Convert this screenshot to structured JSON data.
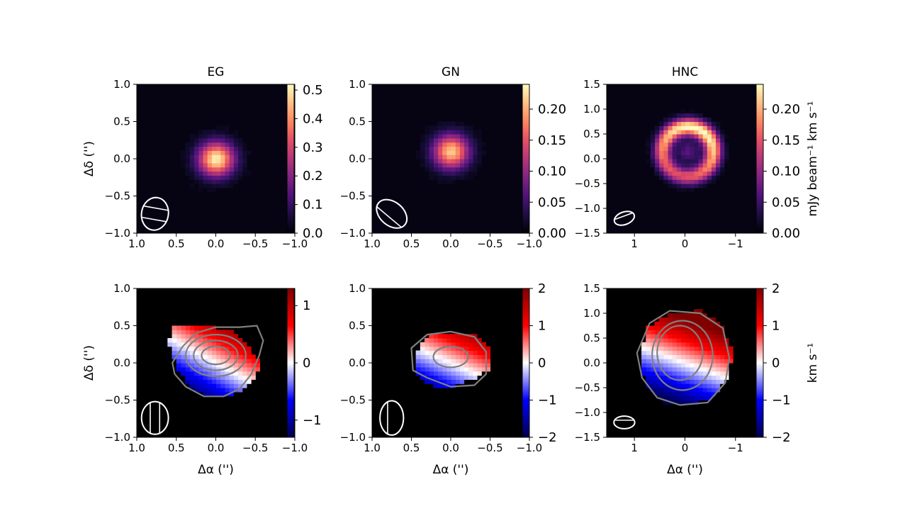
{
  "chart_data": [
    {
      "type": "heatmap",
      "panel": "EG-moment0",
      "title": "EG",
      "xlabel": "",
      "ylabel": "Δδ ('')",
      "xlim": [
        1.0,
        -1.0
      ],
      "ylim": [
        -1.0,
        1.0
      ],
      "xticks": [
        "1.0",
        "0.5",
        "0.0",
        "−0.5",
        "−1.0"
      ],
      "yticks": [
        "1.0",
        "0.5",
        "0.0",
        "−0.5",
        "−1.0"
      ],
      "colormap": "magma",
      "colorbar": {
        "range": [
          0,
          0.52
        ],
        "ticks": [
          "0.5",
          "0.4",
          "0.3",
          "0.2",
          "0.1",
          "0.0"
        ],
        "label": ""
      },
      "emission": {
        "shape": "peak",
        "ra_center": 0.0,
        "dec_center": 0.0,
        "peak": 0.5
      },
      "beam": {
        "ra": 0.77,
        "dec": -0.74,
        "major": 0.44,
        "minor": 0.34,
        "pa": 10
      }
    },
    {
      "type": "heatmap",
      "panel": "GN-moment0",
      "title": "GN",
      "xlabel": "",
      "ylabel": "",
      "xlim": [
        1.0,
        -1.0
      ],
      "ylim": [
        -1.0,
        1.0
      ],
      "xticks": [
        "1.0",
        "0.5",
        "0.0",
        "−0.5",
        "−1.0"
      ],
      "yticks": [
        "1.0",
        "0.5",
        "0.0",
        "−0.5",
        "−1.0"
      ],
      "colormap": "magma",
      "colorbar": {
        "range": [
          0,
          0.24
        ],
        "ticks": [
          "0.20",
          "0.15",
          "0.10",
          "0.05",
          "0.00"
        ],
        "label": ""
      },
      "emission": {
        "shape": "peak",
        "ra_center": 0.0,
        "dec_center": 0.1,
        "peak": 0.21
      },
      "beam": {
        "ra": 0.75,
        "dec": -0.74,
        "major": 0.46,
        "minor": 0.3,
        "pa": -50
      }
    },
    {
      "type": "heatmap",
      "panel": "HNC-moment0",
      "title": "HNC",
      "xlabel": "",
      "ylabel": "",
      "xlim": [
        1.55,
        -1.55
      ],
      "ylim": [
        -1.5,
        1.5
      ],
      "xticks": [
        "1",
        "0",
        "−1"
      ],
      "yticks": [
        "1.5",
        "1.0",
        "0.5",
        "0.0",
        "−0.5",
        "−1.0",
        "−1.5"
      ],
      "colormap": "magma",
      "colorbar": {
        "range": [
          0,
          0.24
        ],
        "ticks": [
          "0.20",
          "0.15",
          "0.10",
          "0.05",
          "0.00"
        ],
        "label": "mJy beam⁻¹ km s⁻¹"
      },
      "emission": {
        "shape": "ring",
        "ra_center": 0.05,
        "dec_center": 0.15,
        "radius": 0.5,
        "peak": 0.24
      },
      "beam": {
        "ra": 1.2,
        "dec": -1.2,
        "major": 0.42,
        "minor": 0.25,
        "pa": 70
      }
    },
    {
      "type": "heatmap",
      "panel": "EG-moment1",
      "xlabel": "Δα ('')",
      "ylabel": "Δδ ('')",
      "xlim": [
        1.0,
        -1.0
      ],
      "ylim": [
        -1.0,
        1.0
      ],
      "xticks": [
        "1.0",
        "0.5",
        "0.0",
        "−0.5",
        "−1.0"
      ],
      "yticks": [
        "1.0",
        "0.5",
        "0.0",
        "−0.5",
        "−1.0"
      ],
      "colormap": "seismic",
      "colorbar": {
        "range": [
          -1.3,
          1.3
        ],
        "ticks": [
          "1",
          "0",
          "−1"
        ],
        "label": ""
      },
      "velocity_field": {
        "gradient_angle_deg": 30,
        "max": 1.3
      },
      "emission_extent": [
        [
          0.55,
          0.0
        ],
        [
          0.42,
          0.22
        ],
        [
          0.25,
          0.4
        ],
        [
          0.0,
          0.48
        ],
        [
          -0.3,
          0.48
        ],
        [
          -0.52,
          0.5
        ],
        [
          -0.6,
          0.3
        ],
        [
          -0.55,
          0.1
        ],
        [
          -0.45,
          -0.15
        ],
        [
          -0.3,
          -0.35
        ],
        [
          -0.1,
          -0.45
        ],
        [
          0.15,
          -0.45
        ],
        [
          0.38,
          -0.32
        ],
        [
          0.52,
          -0.15
        ]
      ],
      "contours": [
        {
          "ra": 0.0,
          "dec": 0.1,
          "ra_radius": 0.18,
          "dec_radius": 0.12
        },
        {
          "ra": 0.0,
          "dec": 0.1,
          "ra_radius": 0.28,
          "dec_radius": 0.2
        },
        {
          "ra": 0.0,
          "dec": 0.1,
          "ra_radius": 0.38,
          "dec_radius": 0.28
        }
      ],
      "beam": {
        "ra": 0.77,
        "dec": -0.74,
        "major": 0.44,
        "minor": 0.34,
        "pa": 0
      }
    },
    {
      "type": "heatmap",
      "panel": "GN-moment1",
      "xlabel": "Δα ('')",
      "ylabel": "",
      "xlim": [
        1.0,
        -1.0
      ],
      "ylim": [
        -1.0,
        1.0
      ],
      "xticks": [
        "1.0",
        "0.5",
        "0.0",
        "−0.5",
        "−1.0"
      ],
      "yticks": [
        "1.0",
        "0.5",
        "0.0",
        "−0.5",
        "−1.0"
      ],
      "colormap": "seismic",
      "colorbar": {
        "range": [
          -2,
          2
        ],
        "ticks": [
          "2",
          "1",
          "0",
          "−1",
          "−2"
        ],
        "label": ""
      },
      "velocity_field": {
        "gradient_angle_deg": 25,
        "max": 2.0
      },
      "emission_extent": [
        [
          0.5,
          0.2
        ],
        [
          0.3,
          0.38
        ],
        [
          0.0,
          0.42
        ],
        [
          -0.3,
          0.35
        ],
        [
          -0.45,
          0.15
        ],
        [
          -0.45,
          -0.15
        ],
        [
          -0.3,
          -0.3
        ],
        [
          0.0,
          -0.32
        ],
        [
          0.3,
          -0.2
        ],
        [
          0.48,
          -0.1
        ]
      ],
      "contours": [
        {
          "ra": 0.0,
          "dec": 0.08,
          "ra_radius": 0.22,
          "dec_radius": 0.14
        }
      ],
      "beam": {
        "ra": 0.75,
        "dec": -0.74,
        "major": 0.46,
        "minor": 0.3,
        "pa": 0
      }
    },
    {
      "type": "heatmap",
      "panel": "HNC-moment1",
      "xlabel": "Δα ('')",
      "ylabel": "",
      "xlim": [
        1.55,
        -1.55
      ],
      "ylim": [
        -1.5,
        1.5
      ],
      "xticks": [
        "1",
        "0",
        "−1"
      ],
      "yticks": [
        "1.5",
        "1.0",
        "0.5",
        "0.0",
        "−0.5",
        "−1.0",
        "−1.5"
      ],
      "colormap": "seismic",
      "colorbar": {
        "range": [
          -2,
          2
        ],
        "ticks": [
          "2",
          "1",
          "0",
          "−1",
          "−2"
        ],
        "label": "km s⁻¹"
      },
      "velocity_field": {
        "gradient_angle_deg": 20,
        "max": 2.0
      },
      "emission_extent": [
        [
          0.95,
          0.2
        ],
        [
          0.7,
          0.8
        ],
        [
          0.3,
          1.05
        ],
        [
          -0.3,
          1.0
        ],
        [
          -0.75,
          0.7
        ],
        [
          -0.88,
          0.1
        ],
        [
          -0.8,
          -0.4
        ],
        [
          -0.45,
          -0.8
        ],
        [
          0.1,
          -0.85
        ],
        [
          0.55,
          -0.7
        ],
        [
          0.85,
          -0.3
        ]
      ],
      "contours": [
        {
          "ra": 0.1,
          "dec": 0.2,
          "ra_radius": 0.45,
          "dec_radius": 0.55
        },
        {
          "ra": 0.05,
          "dec": 0.15,
          "ra_radius": 0.6,
          "dec_radius": 0.7
        }
      ],
      "beam": {
        "ra": 1.2,
        "dec": -1.2,
        "major": 0.42,
        "minor": 0.25,
        "pa": 90
      }
    }
  ]
}
